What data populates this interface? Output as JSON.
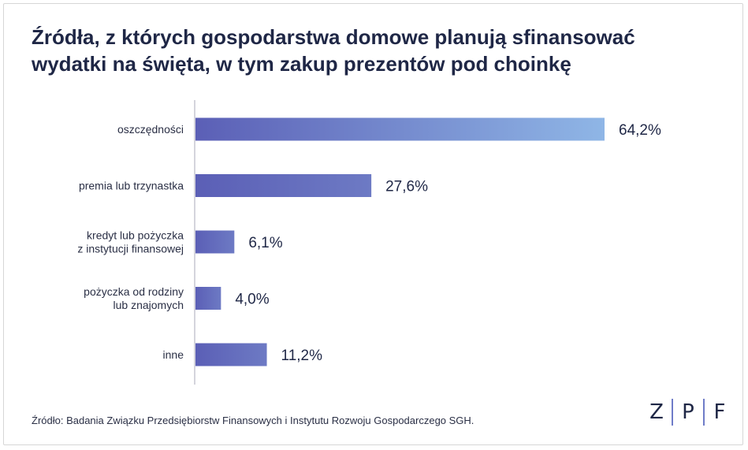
{
  "chart_data": {
    "type": "bar",
    "orientation": "horizontal",
    "title_lines": [
      "Źródła, z których gospodarstwa domowe planują sfinansować",
      "wydatki na święta, w tym zakup prezentów pod choinkę"
    ],
    "categories": [
      [
        "oszczędności"
      ],
      [
        "premia lub trzynastka"
      ],
      [
        "kredyt lub pożyczka",
        "z instytucji finansowej"
      ],
      [
        "pożyczka od rodziny",
        "lub znajomych"
      ],
      [
        "inne"
      ]
    ],
    "values": [
      64.2,
      27.6,
      6.1,
      4.0,
      11.2
    ],
    "value_labels": [
      "64,2%",
      "27,6%",
      "6,1%",
      "4,0%",
      "11,2%"
    ],
    "xlim": [
      0,
      64.2
    ],
    "grid": false,
    "legend": "none"
  },
  "footer": {
    "source": "Źródło: Badania Związku Przedsiębiorstw Finansowych i Instytutu Rozwoju Gospodarczego SGH.",
    "logo_letters": [
      "Z",
      "P",
      "F"
    ]
  },
  "colors": {
    "title": "#1f2746",
    "bar_start": "#5b5fb6",
    "bar_end": "#8fb6e6",
    "axis": "#a8a8b8",
    "text": "#2a2f45"
  }
}
